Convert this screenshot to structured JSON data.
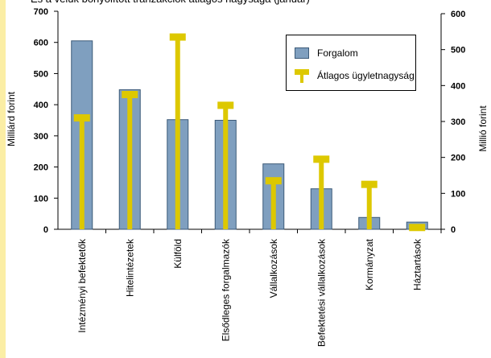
{
  "chart_data": {
    "type": "bar",
    "title": "És a velük bonyolított tranzakciók átlagos nagysága (január)",
    "categories": [
      "Intézményi befektetők",
      "Hitelintézetek",
      "Külföld",
      "Elsődleges forgalmazók",
      "Vállalkozások",
      "Befektetési vállalkozások",
      "Kormányzat",
      "Háztartások"
    ],
    "series": [
      {
        "name": "Forgalom",
        "type": "bar",
        "axis": "left",
        "color": "#7f9fbf",
        "values": [
          605,
          448,
          352,
          350,
          210,
          130,
          38,
          23
        ]
      },
      {
        "name": "Átlagos ügyletnagyság",
        "type": "lollipop",
        "axis": "right",
        "color": "#ddc800",
        "values": [
          310,
          375,
          535,
          345,
          135,
          195,
          125,
          5
        ]
      }
    ],
    "ylabel": "Milliárd forint",
    "ylabel_right": "Millió forint",
    "ylim": [
      0,
      700
    ],
    "yticks": [
      0,
      100,
      200,
      300,
      400,
      500,
      600,
      700
    ],
    "ylim_right": [
      0,
      600
    ],
    "yticks_right": [
      0,
      100,
      200,
      300,
      400,
      500,
      600
    ],
    "legend_position": "top-right",
    "grid": false
  }
}
